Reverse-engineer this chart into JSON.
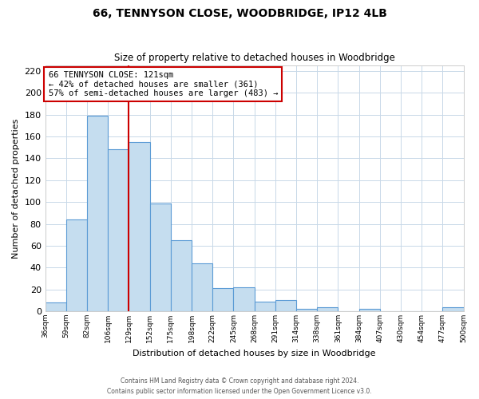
{
  "title": "66, TENNYSON CLOSE, WOODBRIDGE, IP12 4LB",
  "subtitle": "Size of property relative to detached houses in Woodbridge",
  "xlabel": "Distribution of detached houses by size in Woodbridge",
  "ylabel": "Number of detached properties",
  "bar_labels": [
    "36sqm",
    "59sqm",
    "82sqm",
    "106sqm",
    "129sqm",
    "152sqm",
    "175sqm",
    "198sqm",
    "222sqm",
    "245sqm",
    "268sqm",
    "291sqm",
    "314sqm",
    "338sqm",
    "361sqm",
    "384sqm",
    "407sqm",
    "430sqm",
    "454sqm",
    "477sqm",
    "500sqm"
  ],
  "bar_values": [
    8,
    84,
    179,
    148,
    155,
    99,
    65,
    44,
    21,
    22,
    9,
    10,
    2,
    4,
    0,
    2,
    0,
    0,
    0,
    4
  ],
  "bar_color": "#c5ddef",
  "bar_edge_color": "#5b9bd5",
  "vline_x": 4,
  "vline_color": "#cc0000",
  "ylim": [
    0,
    225
  ],
  "yticks": [
    0,
    20,
    40,
    60,
    80,
    100,
    120,
    140,
    160,
    180,
    200,
    220
  ],
  "annotation_title": "66 TENNYSON CLOSE: 121sqm",
  "annotation_line1": "← 42% of detached houses are smaller (361)",
  "annotation_line2": "57% of semi-detached houses are larger (483) →",
  "annotation_box_color": "#ffffff",
  "annotation_box_edge": "#cc0000",
  "footer_line1": "Contains HM Land Registry data © Crown copyright and database right 2024.",
  "footer_line2": "Contains public sector information licensed under the Open Government Licence v3.0.",
  "bg_color": "#ffffff",
  "grid_color": "#c8d8e8"
}
